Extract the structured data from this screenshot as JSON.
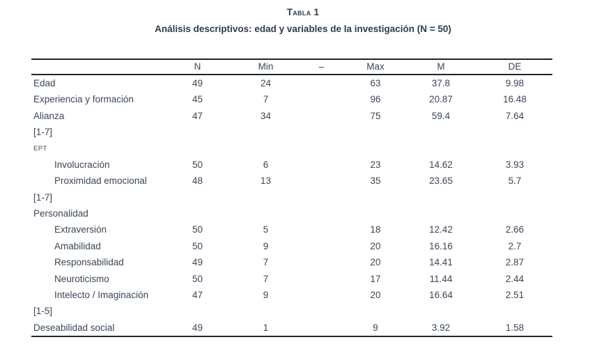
{
  "title": "Tabla 1",
  "subtitle": "Análisis descriptivos: edad y variables de la investigación (N = 50)",
  "colors": {
    "text": "#3a4757",
    "heading_text": "#2f3c4b",
    "rule": "#20242a",
    "background": "#ffffff"
  },
  "table": {
    "columns": [
      "",
      "N",
      "Min",
      "–",
      "Max",
      "M",
      "DE"
    ],
    "rows": [
      {
        "label": "Edad",
        "indent": false,
        "acronym": false,
        "n": "49",
        "min": "24",
        "max": "63",
        "m": "37.8",
        "de": "9.98"
      },
      {
        "label": "Experiencia y formación",
        "indent": false,
        "acronym": false,
        "n": "45",
        "min": "7",
        "max": "96",
        "m": "20.87",
        "de": "16.48"
      },
      {
        "label": "Alianza",
        "indent": false,
        "acronym": false,
        "n": "47",
        "min": "34",
        "max": "75",
        "m": "59.4",
        "de": "7.64"
      },
      {
        "label": "[1-7]",
        "indent": false,
        "acronym": false,
        "n": "",
        "min": "",
        "max": "",
        "m": "",
        "de": ""
      },
      {
        "label": "EPT",
        "indent": false,
        "acronym": true,
        "n": "",
        "min": "",
        "max": "",
        "m": "",
        "de": ""
      },
      {
        "label": "Involucración",
        "indent": true,
        "acronym": false,
        "n": "50",
        "min": "6",
        "max": "23",
        "m": "14.62",
        "de": "3.93"
      },
      {
        "label": "Proximidad emocional",
        "indent": true,
        "acronym": false,
        "n": "48",
        "min": "13",
        "max": "35",
        "m": "23.65",
        "de": "5.7"
      },
      {
        "label": "[1-7]",
        "indent": false,
        "acronym": false,
        "n": "",
        "min": "",
        "max": "",
        "m": "",
        "de": ""
      },
      {
        "label": "Personalidad",
        "indent": false,
        "acronym": false,
        "n": "",
        "min": "",
        "max": "",
        "m": "",
        "de": ""
      },
      {
        "label": "Extraversión",
        "indent": true,
        "acronym": false,
        "n": "50",
        "min": "5",
        "max": "18",
        "m": "12.42",
        "de": "2.66"
      },
      {
        "label": "Amabilidad",
        "indent": true,
        "acronym": false,
        "n": "50",
        "min": "9",
        "max": "20",
        "m": "16.16",
        "de": "2.7"
      },
      {
        "label": "Responsabilidad",
        "indent": true,
        "acronym": false,
        "n": "49",
        "min": "7",
        "max": "20",
        "m": "14.41",
        "de": "2.87"
      },
      {
        "label": "Neuroticismo",
        "indent": true,
        "acronym": false,
        "n": "50",
        "min": "7",
        "max": "17",
        "m": "11.44",
        "de": "2.44"
      },
      {
        "label": "Intelecto / Imaginación",
        "indent": true,
        "acronym": false,
        "n": "47",
        "min": "9",
        "max": "20",
        "m": "16.64",
        "de": "2.51"
      },
      {
        "label": "[1-5]",
        "indent": false,
        "acronym": false,
        "n": "",
        "min": "",
        "max": "",
        "m": "",
        "de": ""
      },
      {
        "label": "Deseabilidad social",
        "indent": false,
        "acronym": false,
        "n": "49",
        "min": "1",
        "max": "9",
        "m": "3.92",
        "de": "1.58"
      }
    ]
  }
}
